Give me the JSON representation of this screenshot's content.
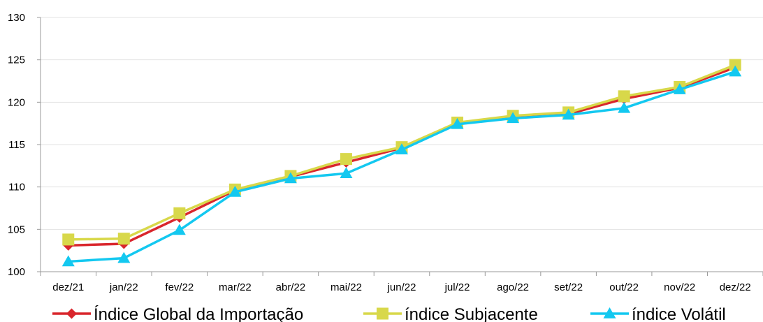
{
  "chart_data": {
    "type": "line",
    "title": "",
    "xlabel": "",
    "ylabel": "",
    "categories": [
      "dez/21",
      "jan/22",
      "fev/22",
      "mar/22",
      "abr/22",
      "mai/22",
      "jun/22",
      "jul/22",
      "ago/22",
      "set/22",
      "out/22",
      "nov/22",
      "dez/22"
    ],
    "ylim": [
      100,
      130
    ],
    "yticks": [
      100,
      105,
      110,
      115,
      120,
      125,
      130
    ],
    "grid": true,
    "legend_position": "bottom",
    "series": [
      {
        "name": "Índice Global da Importação",
        "color": "#d9262c",
        "marker": "diamond",
        "values": [
          103.1,
          103.3,
          106.4,
          109.6,
          111.2,
          112.9,
          114.6,
          117.5,
          118.3,
          118.6,
          120.4,
          121.7,
          124.1
        ]
      },
      {
        "name": "índice Subjacente",
        "color": "#d8d84a",
        "marker": "square",
        "values": [
          103.8,
          103.9,
          106.9,
          109.7,
          111.3,
          113.3,
          114.7,
          117.6,
          118.4,
          118.8,
          120.7,
          121.8,
          124.4
        ]
      },
      {
        "name": "índice Volátil",
        "color": "#13c8f0",
        "marker": "triangle",
        "values": [
          101.2,
          101.6,
          104.9,
          109.4,
          111.0,
          111.6,
          114.4,
          117.4,
          118.1,
          118.5,
          119.3,
          121.5,
          123.6
        ]
      }
    ]
  }
}
